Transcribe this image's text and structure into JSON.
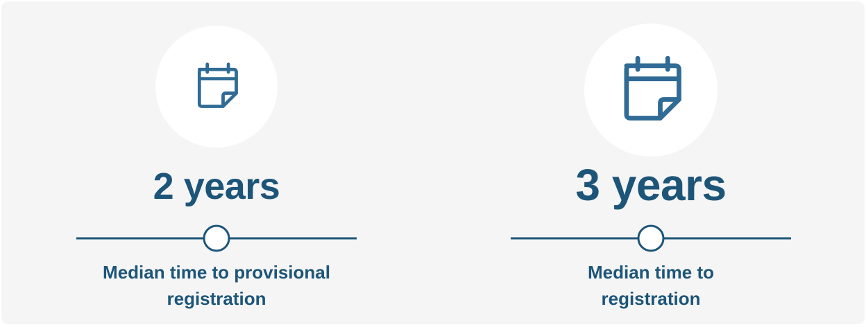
{
  "items": [
    {
      "value": "2 years",
      "label": "Median time to provisional registration"
    },
    {
      "value": "3 years",
      "label": "Median time to registration"
    }
  ]
}
